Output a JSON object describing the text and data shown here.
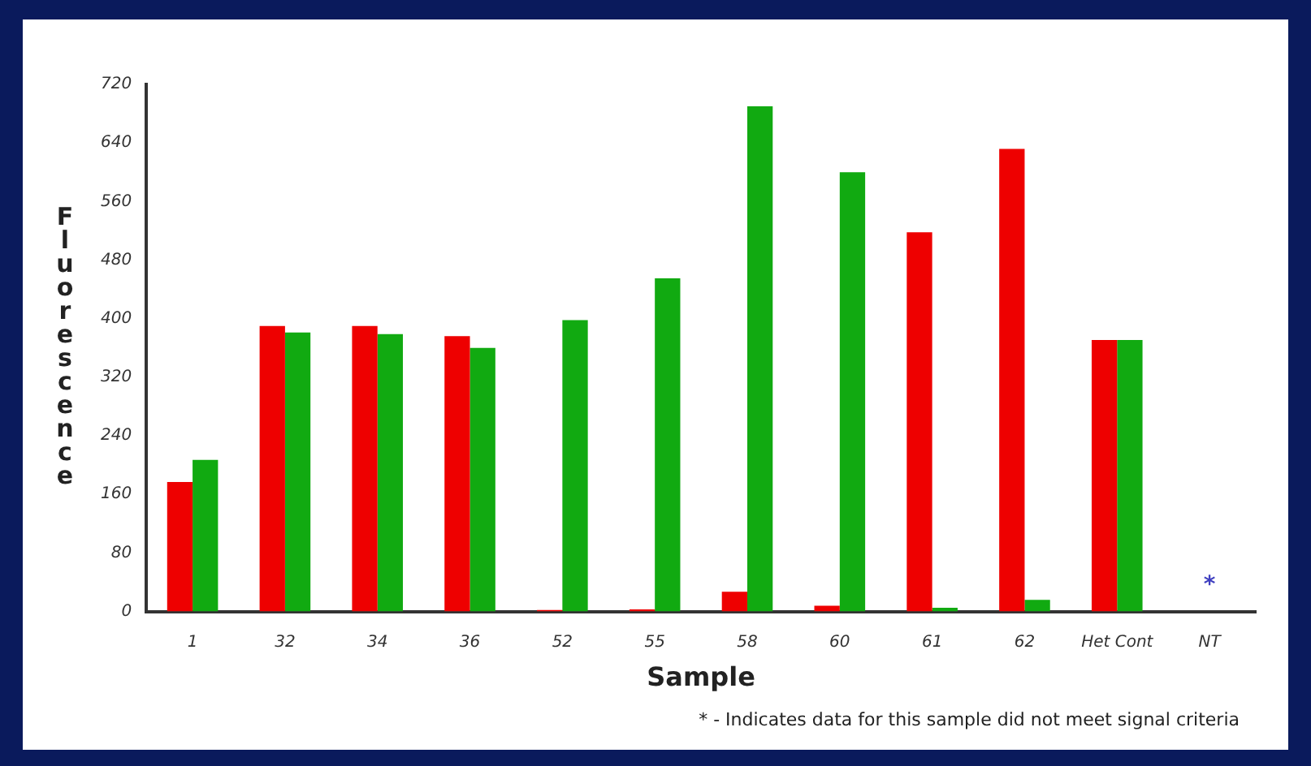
{
  "chart_data": {
    "type": "bar",
    "xlabel": "Sample",
    "ylabel": "Fluorescence",
    "categories": [
      "1",
      "32",
      "34",
      "36",
      "52",
      "55",
      "58",
      "60",
      "61",
      "62",
      "Het Cont",
      "NT"
    ],
    "series": [
      {
        "color": "#ee0000",
        "values": [
          177,
          390,
          390,
          376,
          2,
          3,
          27,
          8,
          518,
          632,
          371,
          null
        ]
      },
      {
        "color": "#11aa11",
        "values": [
          207,
          381,
          379,
          360,
          398,
          455,
          690,
          600,
          5,
          16,
          371,
          null
        ]
      }
    ],
    "ylim": [
      0,
      720
    ],
    "yticks": [
      0,
      80,
      160,
      240,
      320,
      400,
      480,
      560,
      640,
      720
    ],
    "grid": false,
    "legend": false,
    "annotations": [
      "*",
      "* - Indicates data for this sample did not meet signal criteria"
    ]
  }
}
